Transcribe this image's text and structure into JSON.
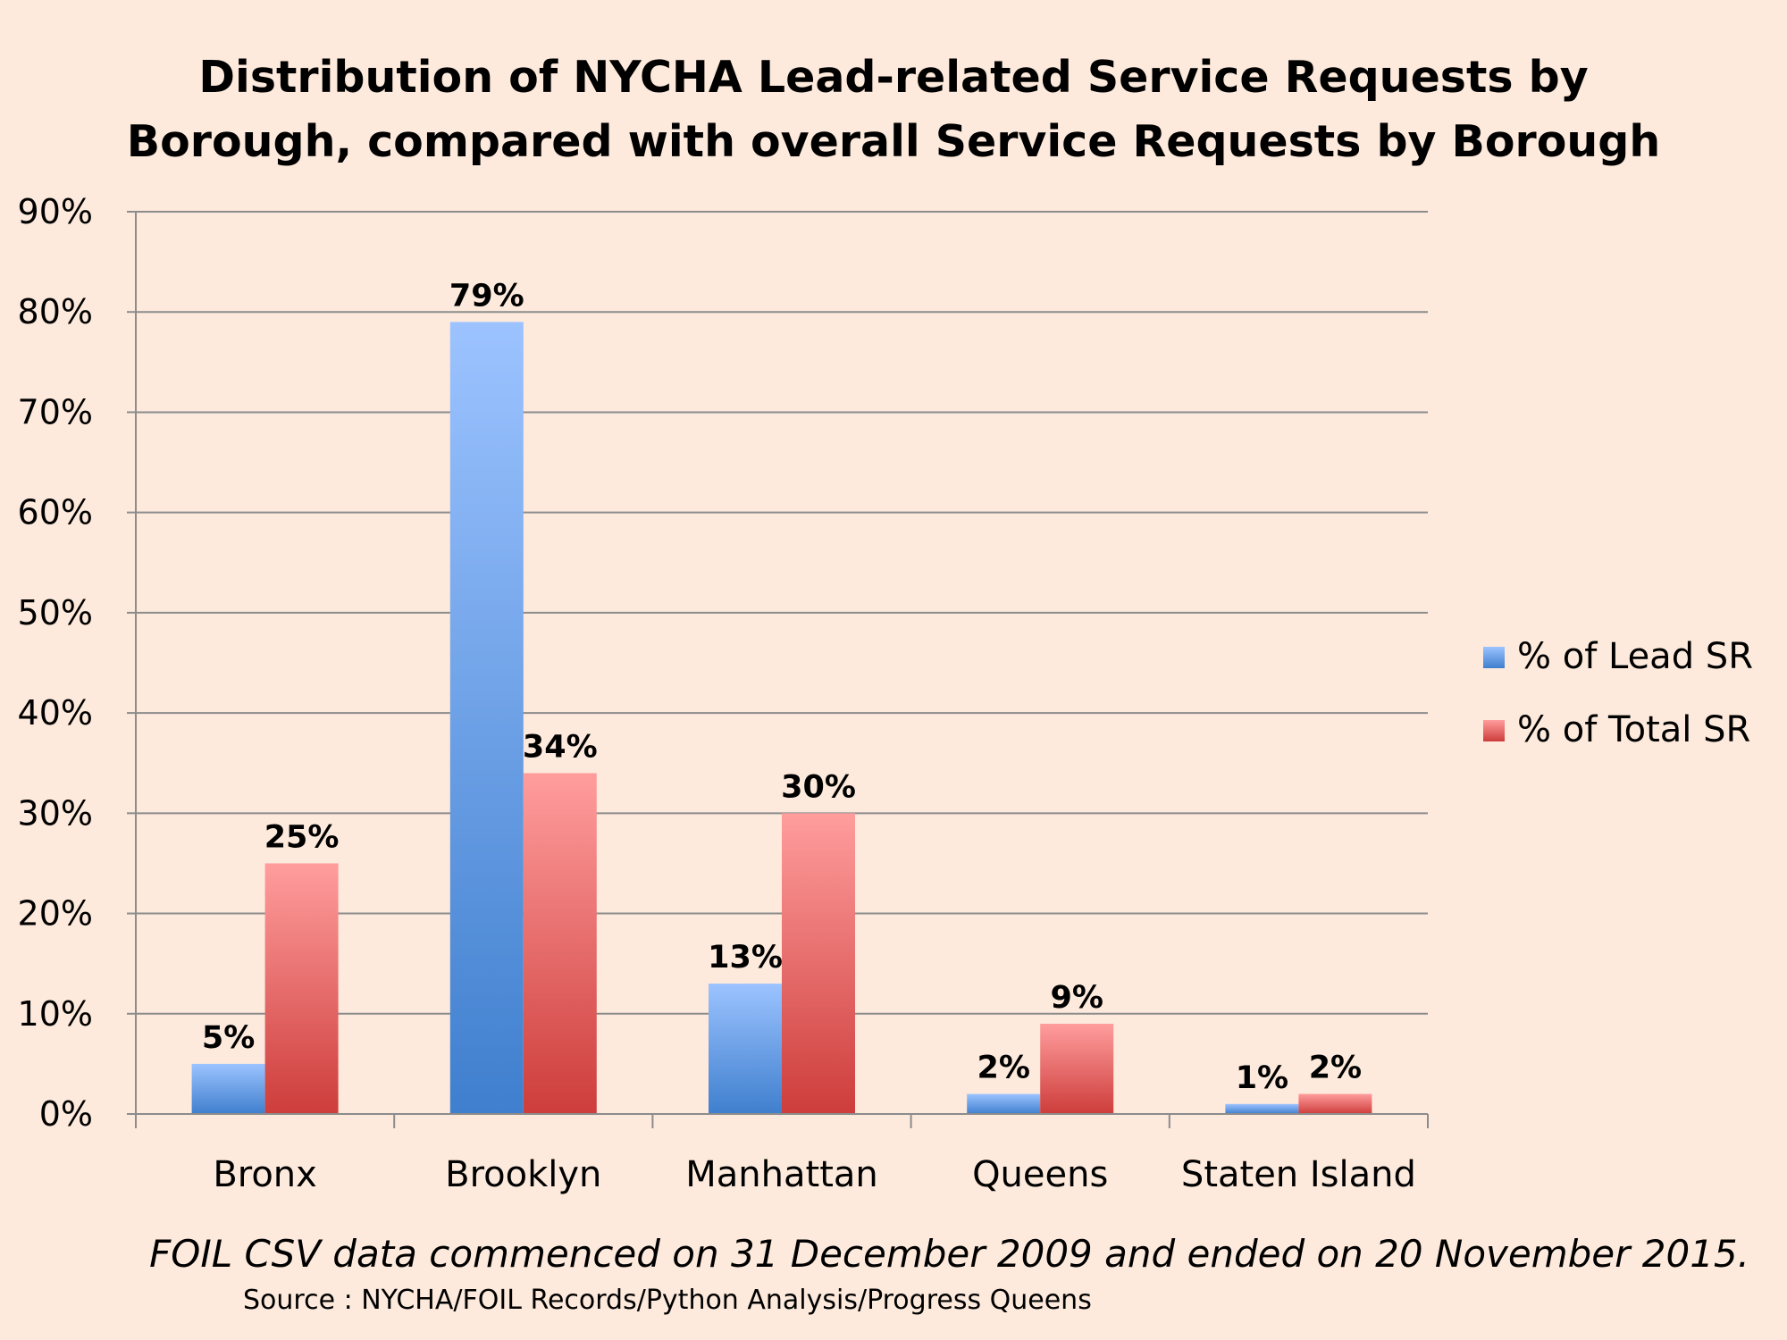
{
  "chart_data": {
    "type": "bar",
    "title_lines": [
      "Distribution of NYCHA Lead-related Service Requests by",
      "Borough, compared with overall Service Requests by Borough"
    ],
    "categories": [
      "Bronx",
      "Brooklyn",
      "Manhattan",
      "Queens",
      "Staten Island"
    ],
    "series": [
      {
        "name": "% of Lead SR",
        "values": [
          5,
          79,
          13,
          2,
          1
        ],
        "labels": [
          "5%",
          "79%",
          "13%",
          "2%",
          "1%"
        ],
        "color_top": "#9cc3ff",
        "color_bottom": "#3f7fce"
      },
      {
        "name": "% of Total SR",
        "values": [
          25,
          34,
          30,
          9,
          2
        ],
        "labels": [
          "25%",
          "34%",
          "30%",
          "9%",
          "2%"
        ],
        "color_top": "#ff9d9d",
        "color_bottom": "#cd3d3b"
      }
    ],
    "ylim": [
      0,
      90
    ],
    "yticks": [
      "0%",
      "10%",
      "20%",
      "30%",
      "40%",
      "50%",
      "60%",
      "70%",
      "80%",
      "90%"
    ],
    "grid": true,
    "legend_position": "right",
    "xlabel": "",
    "ylabel": ""
  },
  "footer": {
    "note": "FOIL CSV data commenced on 31 December 2009 and ended on 20 November 2015.",
    "source": "Source : NYCHA/FOIL Records/Python Analysis/Progress Queens"
  },
  "colors": {
    "background": "#fdeadc",
    "gridline": "#8c8c8c"
  }
}
